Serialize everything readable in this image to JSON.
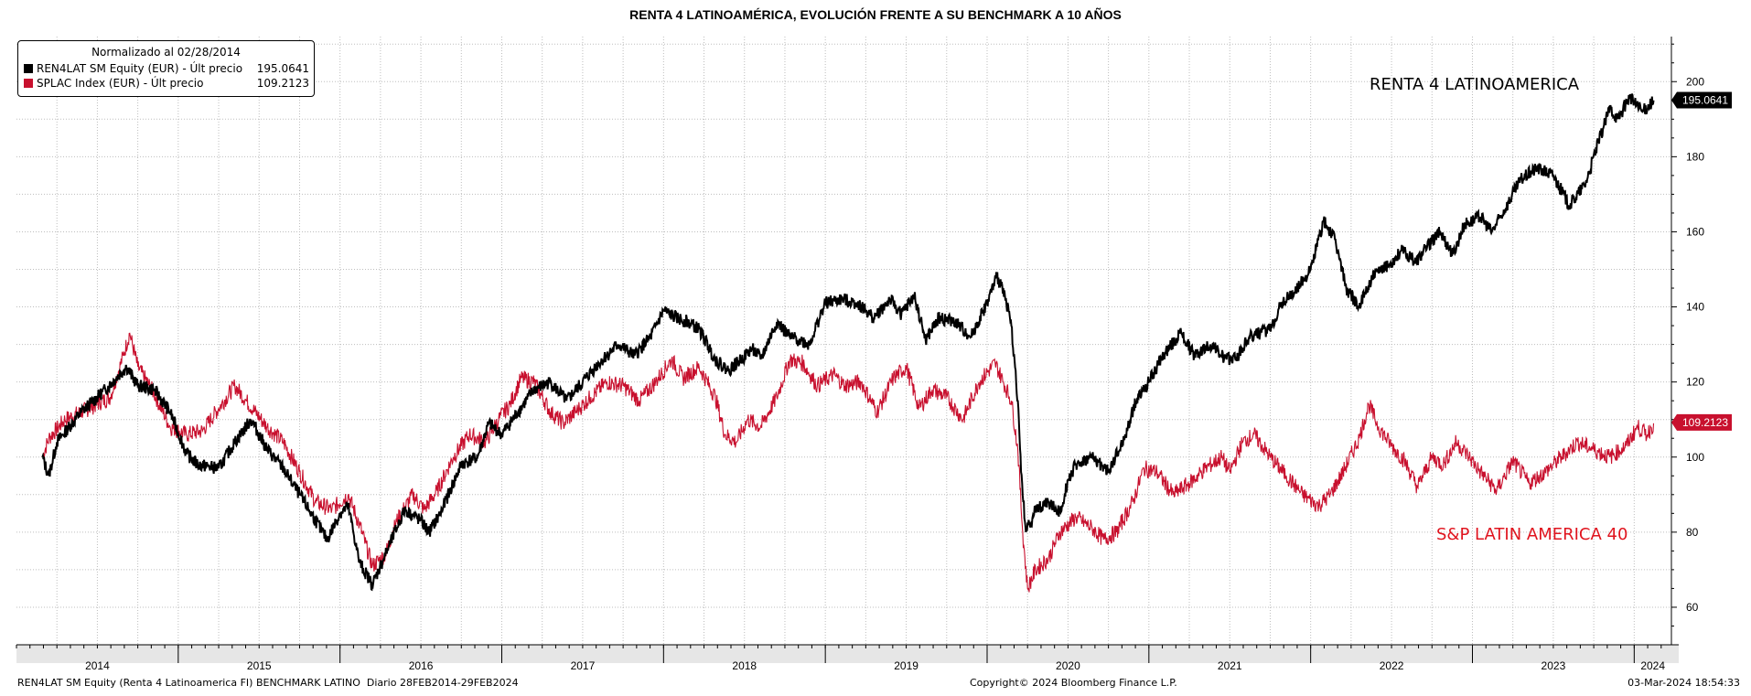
{
  "chart_data": {
    "type": "line",
    "title": "RENTA 4 LATINOAMÉRICA, EVOLUCIÓN FRENTE A SU BENCHMARK A 10 AÑOS",
    "ylim": [
      50,
      212
    ],
    "yticks": [
      60,
      80,
      100,
      120,
      140,
      160,
      180,
      200
    ],
    "xlim": [
      2014.0,
      2024.23
    ],
    "xtick_labels": [
      "2014",
      "2015",
      "2016",
      "2017",
      "2018",
      "2019",
      "2020",
      "2021",
      "2022",
      "2023",
      "2024"
    ],
    "grid": true,
    "legend_placement": "top-left",
    "legend_title": "Normalizado al 02/28/2014",
    "series": [
      {
        "name": "REN4LAT SM Equity (EUR) - Últ precio",
        "last_value": "195.0641",
        "color": "#000000",
        "annotation": "RENTA 4 LATINOAMERICA",
        "points": [
          [
            2014.16,
            100
          ],
          [
            2014.2,
            95
          ],
          [
            2014.25,
            104
          ],
          [
            2014.4,
            112
          ],
          [
            2014.55,
            118
          ],
          [
            2014.68,
            124
          ],
          [
            2014.75,
            119
          ],
          [
            2014.85,
            118
          ],
          [
            2014.95,
            112
          ],
          [
            2015.05,
            101
          ],
          [
            2015.12,
            98
          ],
          [
            2015.25,
            97
          ],
          [
            2015.35,
            104
          ],
          [
            2015.45,
            110
          ],
          [
            2015.55,
            102
          ],
          [
            2015.65,
            97
          ],
          [
            2015.75,
            90
          ],
          [
            2015.85,
            83
          ],
          [
            2015.92,
            78
          ],
          [
            2016.0,
            85
          ],
          [
            2016.05,
            87
          ],
          [
            2016.12,
            72
          ],
          [
            2016.2,
            66
          ],
          [
            2016.3,
            76
          ],
          [
            2016.4,
            86
          ],
          [
            2016.5,
            83
          ],
          [
            2016.55,
            80
          ],
          [
            2016.62,
            85
          ],
          [
            2016.75,
            98
          ],
          [
            2016.85,
            100
          ],
          [
            2016.92,
            109
          ],
          [
            2017.0,
            106
          ],
          [
            2017.1,
            112
          ],
          [
            2017.2,
            118
          ],
          [
            2017.3,
            120
          ],
          [
            2017.4,
            115
          ],
          [
            2017.5,
            120
          ],
          [
            2017.6,
            125
          ],
          [
            2017.72,
            130
          ],
          [
            2017.82,
            127
          ],
          [
            2017.92,
            132
          ],
          [
            2018.0,
            139
          ],
          [
            2018.08,
            137
          ],
          [
            2018.15,
            136
          ],
          [
            2018.22,
            134
          ],
          [
            2018.32,
            126
          ],
          [
            2018.4,
            123
          ],
          [
            2018.48,
            126
          ],
          [
            2018.55,
            129
          ],
          [
            2018.6,
            126
          ],
          [
            2018.7,
            136
          ],
          [
            2018.78,
            132
          ],
          [
            2018.85,
            131
          ],
          [
            2018.9,
            130
          ],
          [
            2019.0,
            141
          ],
          [
            2019.1,
            142
          ],
          [
            2019.2,
            141
          ],
          [
            2019.3,
            137
          ],
          [
            2019.4,
            142
          ],
          [
            2019.47,
            138
          ],
          [
            2019.55,
            143
          ],
          [
            2019.62,
            131
          ],
          [
            2019.7,
            137
          ],
          [
            2019.8,
            136
          ],
          [
            2019.9,
            132
          ],
          [
            2020.0,
            141
          ],
          [
            2020.06,
            148
          ],
          [
            2020.1,
            145
          ],
          [
            2020.15,
            135
          ],
          [
            2020.19,
            115
          ],
          [
            2020.21,
            96
          ],
          [
            2020.24,
            80
          ],
          [
            2020.3,
            86
          ],
          [
            2020.38,
            88
          ],
          [
            2020.45,
            85
          ],
          [
            2020.5,
            94
          ],
          [
            2020.55,
            98
          ],
          [
            2020.65,
            100
          ],
          [
            2020.75,
            96
          ],
          [
            2020.85,
            105
          ],
          [
            2020.92,
            115
          ],
          [
            2021.0,
            120
          ],
          [
            2021.1,
            128
          ],
          [
            2021.2,
            133
          ],
          [
            2021.28,
            127
          ],
          [
            2021.38,
            130
          ],
          [
            2021.48,
            126
          ],
          [
            2021.55,
            127
          ],
          [
            2021.62,
            132
          ],
          [
            2021.75,
            134
          ],
          [
            2021.82,
            141
          ],
          [
            2021.9,
            144
          ],
          [
            2022.0,
            150
          ],
          [
            2022.08,
            163
          ],
          [
            2022.15,
            158
          ],
          [
            2022.22,
            145
          ],
          [
            2022.3,
            140
          ],
          [
            2022.38,
            148
          ],
          [
            2022.48,
            151
          ],
          [
            2022.56,
            155
          ],
          [
            2022.65,
            152
          ],
          [
            2022.72,
            156
          ],
          [
            2022.8,
            160
          ],
          [
            2022.88,
            154
          ],
          [
            2022.95,
            162
          ],
          [
            2023.05,
            164
          ],
          [
            2023.12,
            160
          ],
          [
            2023.2,
            166
          ],
          [
            2023.3,
            174
          ],
          [
            2023.4,
            177
          ],
          [
            2023.5,
            175
          ],
          [
            2023.6,
            167
          ],
          [
            2023.7,
            173
          ],
          [
            2023.78,
            184
          ],
          [
            2023.85,
            193
          ],
          [
            2023.9,
            190
          ],
          [
            2023.97,
            196
          ],
          [
            2024.05,
            192
          ],
          [
            2024.12,
            195
          ]
        ]
      },
      {
        "name": "SPLAC Index (EUR) - Últ precio",
        "last_value": "109.2123",
        "color": "#C8102E",
        "annotation": "S&P LATIN AMERICA 40",
        "points": [
          [
            2014.16,
            100
          ],
          [
            2014.2,
            105
          ],
          [
            2014.3,
            110
          ],
          [
            2014.45,
            113
          ],
          [
            2014.58,
            116
          ],
          [
            2014.66,
            127
          ],
          [
            2014.7,
            133
          ],
          [
            2014.75,
            124
          ],
          [
            2014.85,
            117
          ],
          [
            2014.95,
            108
          ],
          [
            2015.05,
            106
          ],
          [
            2015.15,
            107
          ],
          [
            2015.25,
            113
          ],
          [
            2015.35,
            119
          ],
          [
            2015.42,
            115
          ],
          [
            2015.55,
            108
          ],
          [
            2015.65,
            104
          ],
          [
            2015.75,
            96
          ],
          [
            2015.85,
            88
          ],
          [
            2015.95,
            86
          ],
          [
            2016.05,
            90
          ],
          [
            2016.12,
            82
          ],
          [
            2016.2,
            71
          ],
          [
            2016.28,
            74
          ],
          [
            2016.35,
            83
          ],
          [
            2016.45,
            90
          ],
          [
            2016.52,
            86
          ],
          [
            2016.6,
            91
          ],
          [
            2016.7,
            100
          ],
          [
            2016.8,
            106
          ],
          [
            2016.9,
            104
          ],
          [
            2016.98,
            110
          ],
          [
            2017.05,
            114
          ],
          [
            2017.12,
            121
          ],
          [
            2017.2,
            120
          ],
          [
            2017.3,
            112
          ],
          [
            2017.38,
            109
          ],
          [
            2017.48,
            113
          ],
          [
            2017.55,
            116
          ],
          [
            2017.65,
            120
          ],
          [
            2017.75,
            119
          ],
          [
            2017.85,
            115
          ],
          [
            2017.95,
            120
          ],
          [
            2018.05,
            126
          ],
          [
            2018.12,
            121
          ],
          [
            2018.22,
            124
          ],
          [
            2018.32,
            116
          ],
          [
            2018.38,
            106
          ],
          [
            2018.45,
            104
          ],
          [
            2018.52,
            110
          ],
          [
            2018.6,
            108
          ],
          [
            2018.7,
            116
          ],
          [
            2018.78,
            126
          ],
          [
            2018.86,
            125
          ],
          [
            2018.95,
            119
          ],
          [
            2019.05,
            122
          ],
          [
            2019.12,
            119
          ],
          [
            2019.22,
            120
          ],
          [
            2019.32,
            112
          ],
          [
            2019.42,
            121
          ],
          [
            2019.5,
            124
          ],
          [
            2019.58,
            113
          ],
          [
            2019.66,
            118
          ],
          [
            2019.75,
            116
          ],
          [
            2019.85,
            110
          ],
          [
            2019.95,
            120
          ],
          [
            2020.05,
            125
          ],
          [
            2020.1,
            120
          ],
          [
            2020.15,
            115
          ],
          [
            2020.19,
            102
          ],
          [
            2020.22,
            80
          ],
          [
            2020.25,
            65
          ],
          [
            2020.3,
            70
          ],
          [
            2020.38,
            73
          ],
          [
            2020.45,
            80
          ],
          [
            2020.55,
            84
          ],
          [
            2020.65,
            81
          ],
          [
            2020.72,
            78
          ],
          [
            2020.8,
            80
          ],
          [
            2020.9,
            88
          ],
          [
            2020.97,
            97
          ],
          [
            2021.05,
            96
          ],
          [
            2021.15,
            90
          ],
          [
            2021.25,
            93
          ],
          [
            2021.35,
            97
          ],
          [
            2021.45,
            100
          ],
          [
            2021.5,
            96
          ],
          [
            2021.58,
            104
          ],
          [
            2021.65,
            106
          ],
          [
            2021.75,
            100
          ],
          [
            2021.85,
            95
          ],
          [
            2021.95,
            90
          ],
          [
            2022.05,
            87
          ],
          [
            2022.12,
            90
          ],
          [
            2022.2,
            96
          ],
          [
            2022.3,
            105
          ],
          [
            2022.36,
            114
          ],
          [
            2022.42,
            108
          ],
          [
            2022.5,
            103
          ],
          [
            2022.58,
            99
          ],
          [
            2022.66,
            92
          ],
          [
            2022.75,
            100
          ],
          [
            2022.82,
            98
          ],
          [
            2022.9,
            104
          ],
          [
            2022.98,
            100
          ],
          [
            2023.05,
            96
          ],
          [
            2023.15,
            91
          ],
          [
            2023.25,
            99
          ],
          [
            2023.35,
            93
          ],
          [
            2023.45,
            96
          ],
          [
            2023.55,
            100
          ],
          [
            2023.65,
            104
          ],
          [
            2023.75,
            102
          ],
          [
            2023.85,
            100
          ],
          [
            2023.95,
            103
          ],
          [
            2024.02,
            108
          ],
          [
            2024.08,
            106
          ],
          [
            2024.12,
            109
          ]
        ]
      }
    ]
  },
  "footer": {
    "left": "REN4LAT SM Equity (Renta 4 Latinoamerica FI) BENCHMARK LATINO  Diario 28FEB2014-29FEB2024",
    "center": "Copyright© 2024 Bloomberg Finance L.P.",
    "right": "03-Mar-2024 18:54:33"
  }
}
